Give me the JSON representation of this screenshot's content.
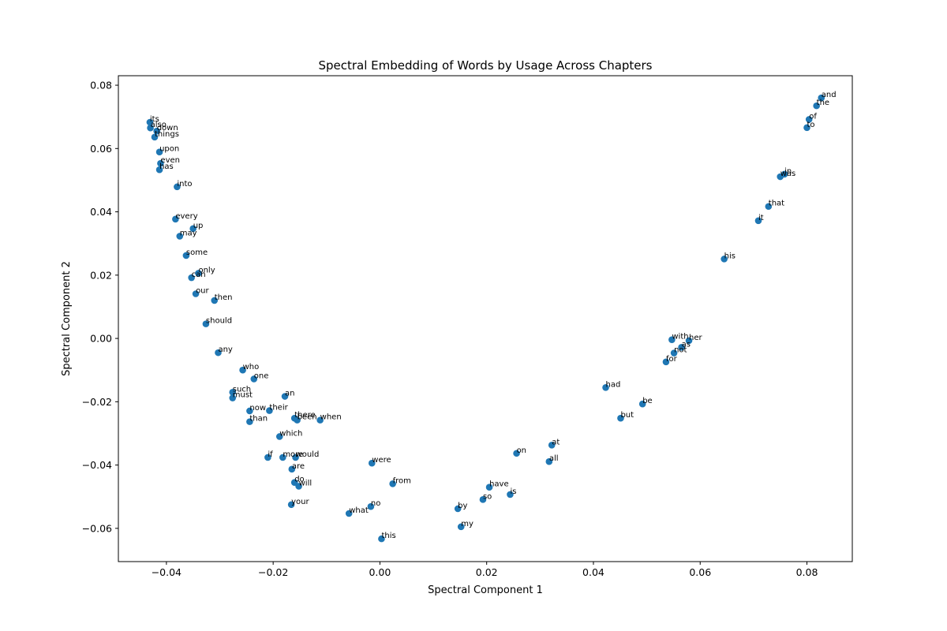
{
  "chart_data": {
    "type": "scatter",
    "title": "Spectral Embedding of Words by Usage Across Chapters",
    "xlabel": "Spectral Component 1",
    "ylabel": "Spectral Component 2",
    "xlim": [
      -0.049,
      0.0885
    ],
    "ylim": [
      -0.0705,
      0.083
    ],
    "xticks": [
      -0.04,
      -0.02,
      0.0,
      0.02,
      0.04,
      0.06,
      0.08
    ],
    "xtick_labels": [
      "−0.04",
      "−0.02",
      "0.00",
      "0.02",
      "0.04",
      "0.06",
      "0.08"
    ],
    "yticks": [
      -0.06,
      -0.04,
      -0.02,
      0.0,
      0.02,
      0.04,
      0.06,
      0.08
    ],
    "ytick_labels": [
      "−0.06",
      "−0.04",
      "−0.02",
      "0.00",
      "0.02",
      "0.04",
      "0.06",
      "0.08"
    ],
    "grid": false,
    "point_color": "#1f77b4",
    "points": [
      {
        "label": "its",
        "x": -0.0431,
        "y": 0.0683
      },
      {
        "label": "also",
        "x": -0.043,
        "y": 0.0665
      },
      {
        "label": "down",
        "x": -0.0418,
        "y": 0.0655
      },
      {
        "label": "things",
        "x": -0.0422,
        "y": 0.0636
      },
      {
        "label": "upon",
        "x": -0.0413,
        "y": 0.0589
      },
      {
        "label": "even",
        "x": -0.0411,
        "y": 0.0553
      },
      {
        "label": "has",
        "x": -0.0413,
        "y": 0.0533
      },
      {
        "label": "into",
        "x": -0.038,
        "y": 0.0479
      },
      {
        "label": "every",
        "x": -0.0383,
        "y": 0.0377
      },
      {
        "label": "up",
        "x": -0.035,
        "y": 0.0347
      },
      {
        "label": "may",
        "x": -0.0375,
        "y": 0.0323
      },
      {
        "label": "some",
        "x": -0.0363,
        "y": 0.0262
      },
      {
        "label": "only",
        "x": -0.034,
        "y": 0.0206
      },
      {
        "label": "can",
        "x": -0.0353,
        "y": 0.0192
      },
      {
        "label": "our",
        "x": -0.0345,
        "y": 0.0141
      },
      {
        "label": "then",
        "x": -0.031,
        "y": 0.012
      },
      {
        "label": "should",
        "x": -0.0326,
        "y": 0.0046
      },
      {
        "label": "any",
        "x": -0.0303,
        "y": -0.0045
      },
      {
        "label": "who",
        "x": -0.0257,
        "y": -0.01
      },
      {
        "label": "one",
        "x": -0.0236,
        "y": -0.0128
      },
      {
        "label": "such",
        "x": -0.0276,
        "y": -0.017
      },
      {
        "label": "must",
        "x": -0.0276,
        "y": -0.0188
      },
      {
        "label": "an",
        "x": -0.0178,
        "y": -0.0183
      },
      {
        "label": "now",
        "x": -0.0244,
        "y": -0.0229
      },
      {
        "label": "their",
        "x": -0.0207,
        "y": -0.0228
      },
      {
        "label": "than",
        "x": -0.0244,
        "y": -0.0263
      },
      {
        "label": "there",
        "x": -0.016,
        "y": -0.0252
      },
      {
        "label": "been",
        "x": -0.0155,
        "y": -0.0258
      },
      {
        "label": "when",
        "x": -0.0112,
        "y": -0.0258
      },
      {
        "label": "which",
        "x": -0.0188,
        "y": -0.031
      },
      {
        "label": "if",
        "x": -0.021,
        "y": -0.0376
      },
      {
        "label": "more",
        "x": -0.0182,
        "y": -0.0376
      },
      {
        "label": "would",
        "x": -0.0158,
        "y": -0.0376
      },
      {
        "label": "are",
        "x": -0.0165,
        "y": -0.0413
      },
      {
        "label": "do",
        "x": -0.016,
        "y": -0.0455
      },
      {
        "label": "will",
        "x": -0.0152,
        "y": -0.0467
      },
      {
        "label": "your",
        "x": -0.0166,
        "y": -0.0525
      },
      {
        "label": "were",
        "x": -0.0015,
        "y": -0.0394
      },
      {
        "label": "from",
        "x": 0.0024,
        "y": -0.0459
      },
      {
        "label": "no",
        "x": -0.0017,
        "y": -0.0531
      },
      {
        "label": "what",
        "x": -0.0058,
        "y": -0.0553
      },
      {
        "label": "this",
        "x": 0.0003,
        "y": -0.0633
      },
      {
        "label": "on",
        "x": 0.0256,
        "y": -0.0363
      },
      {
        "label": "at",
        "x": 0.0322,
        "y": -0.0337
      },
      {
        "label": "all",
        "x": 0.0317,
        "y": -0.0389
      },
      {
        "label": "have",
        "x": 0.0205,
        "y": -0.047
      },
      {
        "label": "is",
        "x": 0.0244,
        "y": -0.0493
      },
      {
        "label": "so",
        "x": 0.0193,
        "y": -0.0509
      },
      {
        "label": "by",
        "x": 0.0146,
        "y": -0.0538
      },
      {
        "label": "my",
        "x": 0.0152,
        "y": -0.0595
      },
      {
        "label": "had",
        "x": 0.0423,
        "y": -0.0155
      },
      {
        "label": "be",
        "x": 0.0492,
        "y": -0.0207
      },
      {
        "label": "but",
        "x": 0.0451,
        "y": -0.0252
      },
      {
        "label": "with",
        "x": 0.0547,
        "y": -0.0004
      },
      {
        "label": "her",
        "x": 0.0579,
        "y": -0.0007
      },
      {
        "label": "as",
        "x": 0.0565,
        "y": -0.0028
      },
      {
        "label": "not",
        "x": 0.0551,
        "y": -0.0046
      },
      {
        "label": "for",
        "x": 0.0536,
        "y": -0.0074
      },
      {
        "label": "his",
        "x": 0.0645,
        "y": 0.0251
      },
      {
        "label": "it",
        "x": 0.0709,
        "y": 0.0372
      },
      {
        "label": "that",
        "x": 0.0728,
        "y": 0.0417
      },
      {
        "label": "in",
        "x": 0.0758,
        "y": 0.0519
      },
      {
        "label": "was",
        "x": 0.075,
        "y": 0.0511
      },
      {
        "label": "of",
        "x": 0.0804,
        "y": 0.0692
      },
      {
        "label": "to",
        "x": 0.08,
        "y": 0.0666
      },
      {
        "label": "the",
        "x": 0.0818,
        "y": 0.0735
      },
      {
        "label": "and",
        "x": 0.0827,
        "y": 0.076
      }
    ]
  }
}
